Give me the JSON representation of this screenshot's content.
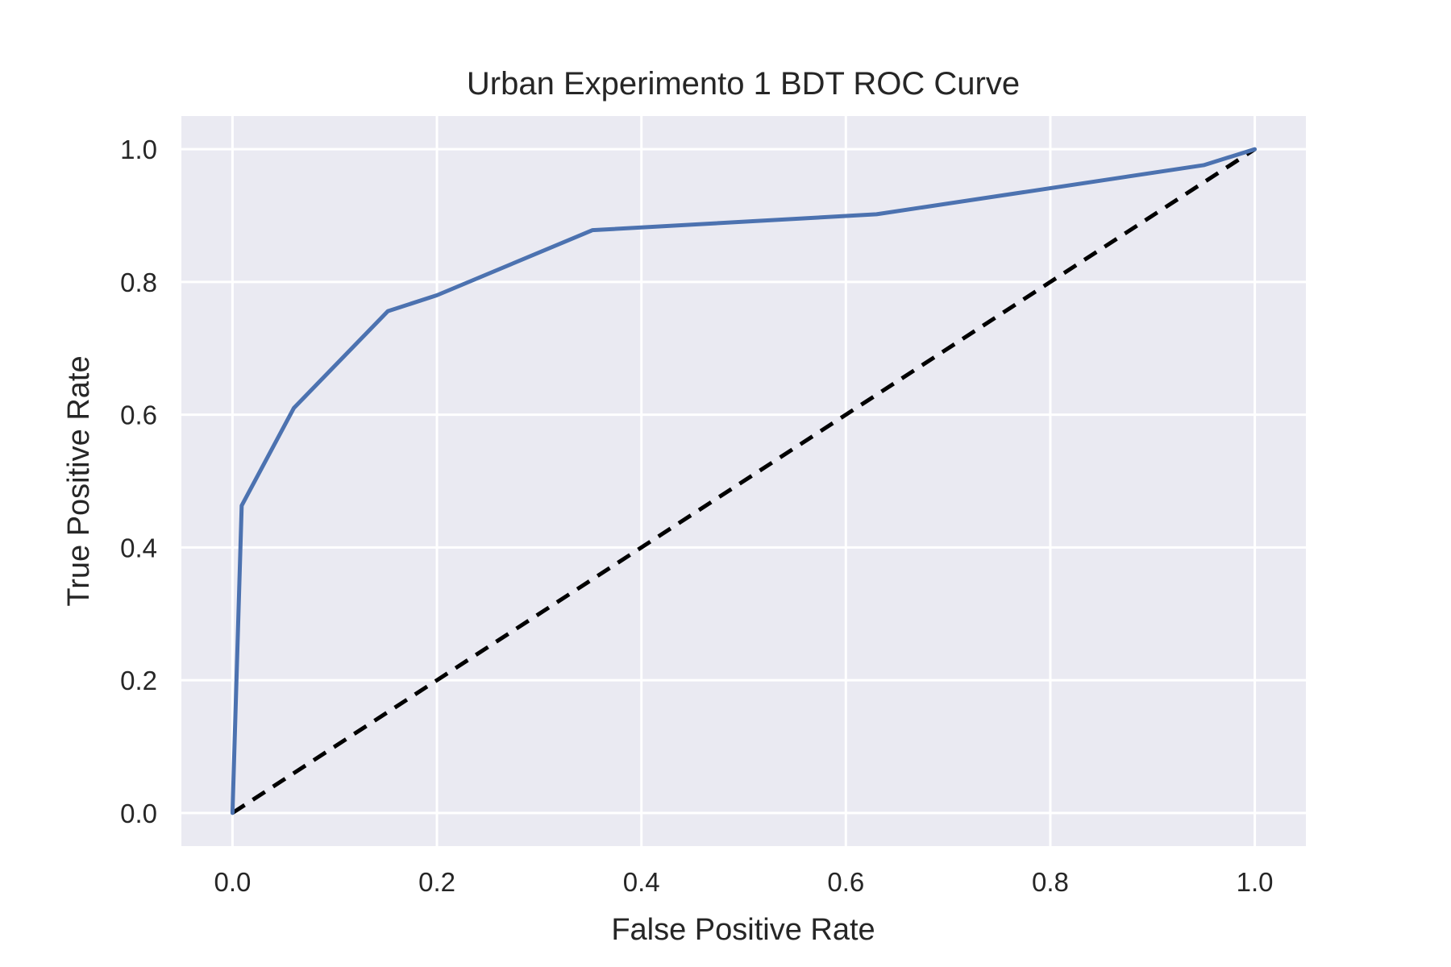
{
  "chart_data": {
    "type": "line",
    "title": "Urban Experimento 1 BDT ROC Curve",
    "xlabel": "False Positive Rate",
    "ylabel": "True Positive Rate",
    "xlim": [
      -0.05,
      1.05
    ],
    "ylim": [
      -0.05,
      1.05
    ],
    "x_ticks": [
      "0.0",
      "0.2",
      "0.4",
      "0.6",
      "0.8",
      "1.0"
    ],
    "y_ticks": [
      "0.0",
      "0.2",
      "0.4",
      "0.6",
      "0.8",
      "1.0"
    ],
    "grid": true,
    "style": "seaborn-darkgrid",
    "series": [
      {
        "color": "#4C72B0",
        "line_style": "solid",
        "x": [
          0.0,
          0.009,
          0.06,
          0.152,
          0.2,
          0.352,
          0.63,
          0.95,
          1.0
        ],
        "y": [
          0.0,
          0.463,
          0.61,
          0.756,
          0.78,
          0.878,
          0.902,
          0.976,
          1.0
        ]
      },
      {
        "color": "#000000",
        "line_style": "dashed",
        "x": [
          0.0,
          1.0
        ],
        "y": [
          0.0,
          1.0
        ]
      }
    ],
    "colors": {
      "plot_background": "#EAEAF2",
      "grid": "#FFFFFF",
      "text": "#262626"
    }
  }
}
